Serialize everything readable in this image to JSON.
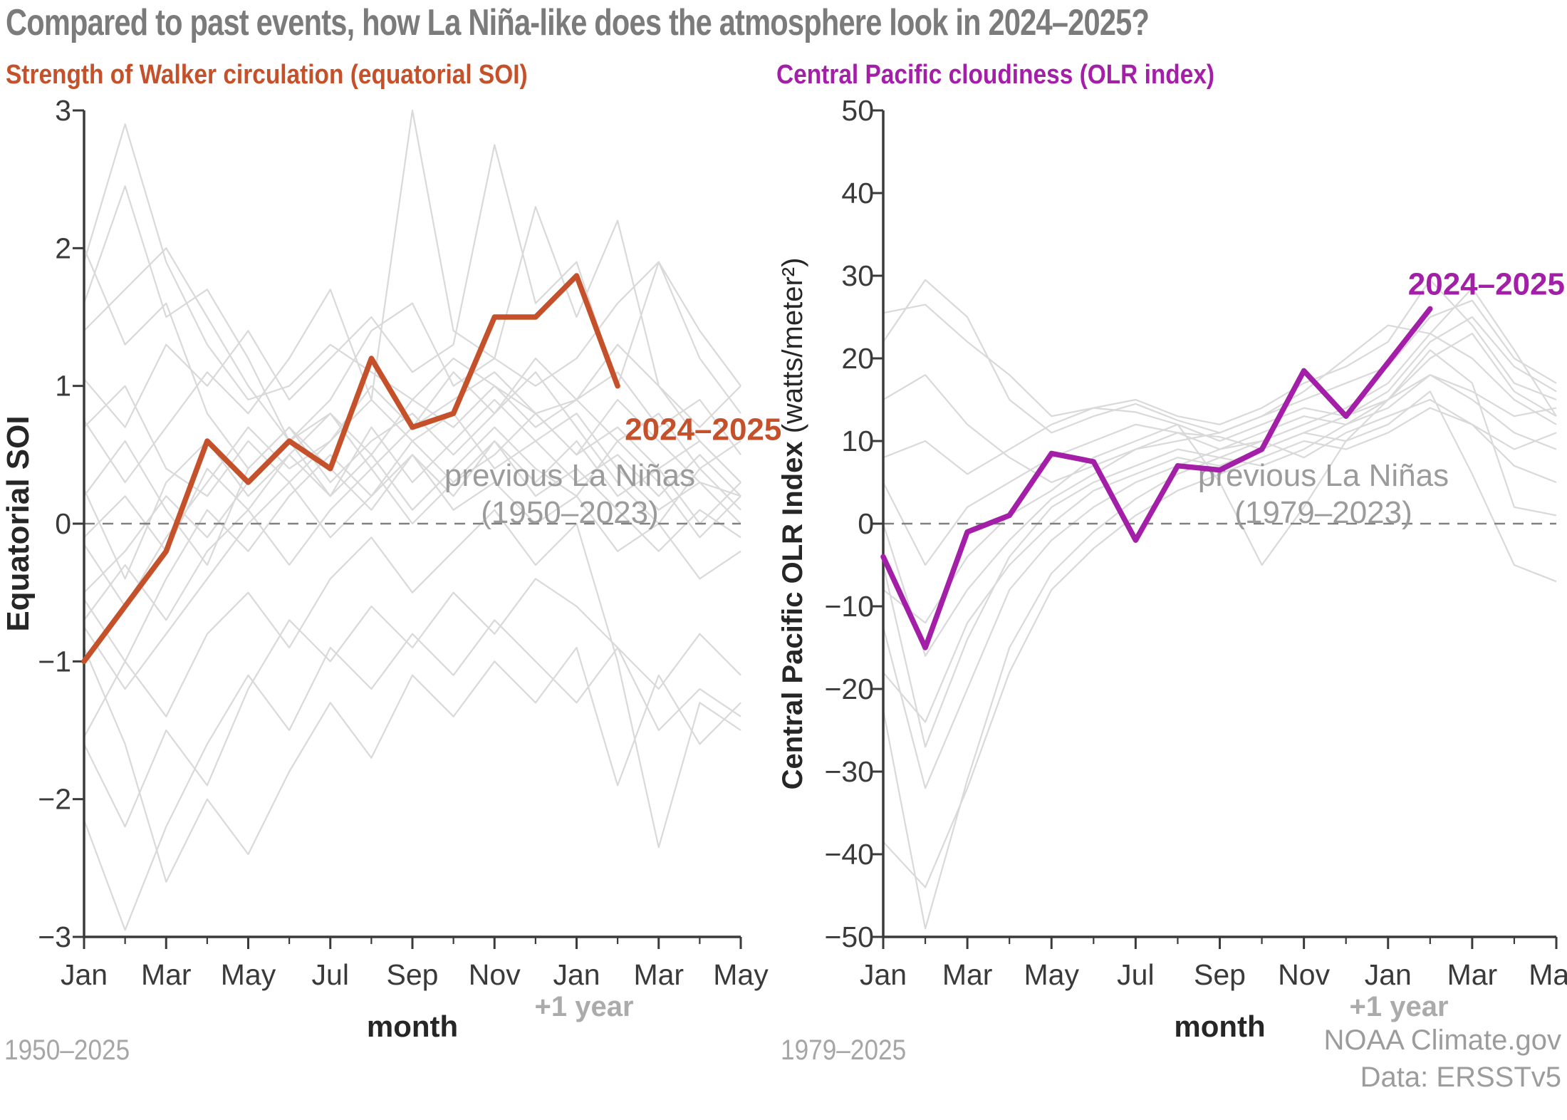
{
  "title": {
    "text": "Compared to past events, how La Niña-like does the atmosphere look in 2024–2025?",
    "color": "#7b7b7b"
  },
  "footer": {
    "left_range": "1950–2025",
    "right_range": "1979–2025",
    "credit_line1": "NOAA Climate.gov",
    "credit_line2": "Data: ERSSTv5"
  },
  "colors": {
    "axis": "#3a3a3a",
    "tick_text": "#3a3a3a",
    "axis_title_text": "#262626",
    "gray_lines": "#d9d9d9",
    "zero_dash": "#808080",
    "ensemble_label": "#9b9b9b",
    "plus_one_year": "#ababab",
    "soi_orange": "#c5512b",
    "olr_purple": "#a31fa8"
  },
  "chart_data": [
    {
      "type": "line",
      "title": "Strength of Walker circulation (equatorial SOI)",
      "title_color": "#c5512b",
      "xlabel": "month",
      "x_annotation": "+1 year",
      "ylabel": "Equatorial SOI",
      "ylabel_unit": "",
      "ylim": [
        -3,
        3
      ],
      "ytick_values": [
        3,
        2,
        1,
        0,
        -1,
        -2,
        -3
      ],
      "ytick_labels": [
        "3",
        "2",
        "1",
        "0",
        "−1",
        "−2",
        "−3"
      ],
      "x": [
        "Jan",
        "Feb",
        "Mar",
        "Apr",
        "May",
        "Jun",
        "Jul",
        "Aug",
        "Sep",
        "Oct",
        "Nov",
        "Dec",
        "Jan",
        "Feb",
        "Mar",
        "Apr",
        "May"
      ],
      "x_tick_labels": [
        "Jan",
        "Mar",
        "May",
        "Jul",
        "Sep",
        "Nov",
        "Jan",
        "Mar",
        "May"
      ],
      "zero_line": true,
      "grid": false,
      "legend_position": "in-plot annotations",
      "current_event": {
        "name": "2024–2025",
        "color": "#c5512b",
        "values": [
          -1.0,
          -0.6,
          -0.2,
          0.6,
          0.3,
          0.6,
          0.4,
          1.2,
          0.7,
          0.8,
          1.5,
          1.5,
          1.8,
          1.0
        ]
      },
      "ensemble": {
        "name": "previous La Niñas (1950–2023)",
        "label_line1": "previous La Niñas",
        "label_line2": "(1950–2023)",
        "color": "#d9d9d9",
        "series": [
          [
            1.9,
            2.9,
            1.9,
            1.3,
            0.9,
            1.0,
            1.3,
            1.1,
            0.9,
            1.2,
            1.0,
            0.8,
            0.5,
            0.9,
            0.6,
            0.3,
            0.2
          ],
          [
            1.6,
            2.45,
            1.5,
            1.7,
            1.2,
            0.6,
            0.9,
            1.4,
            1.6,
            1.0,
            1.2,
            2.3,
            1.5,
            2.2,
            1.0,
            0.7,
            1.0
          ],
          [
            2.0,
            1.3,
            1.6,
            0.8,
            0.4,
            0.7,
            0.3,
            0.6,
            0.8,
            0.5,
            0.8,
            1.1,
            0.7,
            0.3,
            0.0,
            0.4,
            0.1
          ],
          [
            1.4,
            1.7,
            2.0,
            1.5,
            1.0,
            0.6,
            0.8,
            0.4,
            0.7,
            0.9,
            1.1,
            0.8,
            0.9,
            1.3,
            1.0,
            0.6,
            0.3
          ],
          [
            1.05,
            0.7,
            1.3,
            1.0,
            1.4,
            0.9,
            1.2,
            1.5,
            1.1,
            1.3,
            2.75,
            1.6,
            1.9,
            1.0,
            1.9,
            1.2,
            0.8
          ],
          [
            0.75,
            0.3,
            0.7,
            1.1,
            0.8,
            1.2,
            1.7,
            0.9,
            3.0,
            1.4,
            1.2,
            1.0,
            1.2,
            1.6,
            1.9,
            1.4,
            1.0
          ],
          [
            0.7,
            1.0,
            0.4,
            0.2,
            0.6,
            0.3,
            0.6,
            0.9,
            0.6,
            0.8,
            0.4,
            0.6,
            0.3,
            0.5,
            0.2,
            0.5,
            0.2
          ],
          [
            0.25,
            -0.4,
            0.3,
            0.6,
            0.2,
            0.5,
            0.8,
            0.5,
            0.9,
            0.7,
            1.0,
            0.7,
            0.9,
            0.6,
            0.8,
            0.4,
            0.6
          ],
          [
            0.2,
            0.6,
            0.1,
            -0.3,
            0.4,
            0.7,
            0.4,
            0.1,
            0.5,
            0.2,
            0.6,
            0.3,
            0.6,
            0.2,
            0.4,
            0.0,
            0.3
          ],
          [
            -0.1,
            0.2,
            -0.2,
            0.4,
            0.1,
            0.5,
            0.2,
            0.7,
            0.3,
            0.6,
            0.9,
            0.6,
            0.8,
            0.4,
            0.1,
            0.3,
            0.0
          ],
          [
            -0.15,
            -0.6,
            -0.1,
            0.3,
            0.7,
            0.4,
            0.6,
            1.0,
            0.7,
            1.1,
            0.8,
            1.2,
            0.9,
            1.1,
            0.7,
            0.9,
            0.5
          ],
          [
            -0.5,
            -0.2,
            0.2,
            -0.1,
            0.3,
            0.6,
            0.2,
            0.5,
            0.1,
            0.4,
            0.7,
            0.4,
            0.2,
            0.6,
            0.3,
            -0.1,
            0.2
          ],
          [
            -0.55,
            -1.0,
            -0.4,
            0.1,
            -0.2,
            0.2,
            0.5,
            0.2,
            0.6,
            0.3,
            0.5,
            0.8,
            0.5,
            0.7,
            0.4,
            0.6,
            0.3
          ],
          [
            -0.7,
            -0.3,
            -0.7,
            -0.2,
            0.1,
            -0.3,
            0.1,
            0.4,
            0.0,
            0.3,
            0.6,
            0.2,
            0.4,
            0.1,
            -0.2,
            0.1,
            -0.1
          ],
          [
            -0.75,
            -1.2,
            -0.8,
            -0.4,
            0.0,
            0.3,
            -0.1,
            0.2,
            0.5,
            0.1,
            0.3,
            0.0,
            0.2,
            -0.2,
            0.0,
            -0.4,
            -0.2
          ],
          [
            -1.55,
            -1.0,
            -1.4,
            -0.8,
            -0.5,
            -0.9,
            -0.4,
            -0.1,
            -0.5,
            -0.2,
            0.1,
            -0.3,
            0.0,
            -1.0,
            -2.35,
            -1.3,
            -1.5
          ],
          [
            -1.6,
            -2.2,
            -1.5,
            -1.9,
            -1.2,
            -0.7,
            -1.0,
            -0.6,
            -0.9,
            -0.5,
            -0.8,
            -0.4,
            -0.6,
            -0.9,
            -1.2,
            -0.8,
            -1.1
          ],
          [
            -2.15,
            -2.95,
            -2.2,
            -1.6,
            -1.1,
            -1.5,
            -0.9,
            -1.2,
            -0.8,
            -1.1,
            -0.7,
            -1.0,
            -1.3,
            -0.9,
            -1.5,
            -1.2,
            -1.4
          ],
          [
            -0.9,
            -1.6,
            -2.6,
            -2.0,
            -2.4,
            -1.8,
            -1.3,
            -1.7,
            -1.1,
            -1.4,
            -1.0,
            -1.3,
            -0.9,
            -1.9,
            -1.1,
            -1.6,
            -1.3
          ]
        ]
      }
    },
    {
      "type": "line",
      "title": "Central Pacific cloudiness (OLR index)",
      "title_color": "#a31fa8",
      "xlabel": "month",
      "x_annotation": "+1 year",
      "ylabel": "Central Pacific OLR Index",
      "ylabel_unit": " (watts/meter²)",
      "ylim": [
        -50,
        50
      ],
      "ytick_values": [
        50,
        40,
        30,
        20,
        10,
        0,
        -10,
        -20,
        -30,
        -40,
        -50
      ],
      "ytick_labels": [
        "50",
        "40",
        "30",
        "20",
        "10",
        "0",
        "−10",
        "−20",
        "−30",
        "−40",
        "−50"
      ],
      "x": [
        "Jan",
        "Feb",
        "Mar",
        "Apr",
        "May",
        "Jun",
        "Jul",
        "Aug",
        "Sep",
        "Oct",
        "Nov",
        "Dec",
        "Jan",
        "Feb",
        "Mar",
        "Apr",
        "May"
      ],
      "x_tick_labels": [
        "Jan",
        "Mar",
        "May",
        "Jul",
        "Sep",
        "Nov",
        "Jan",
        "Mar",
        "May"
      ],
      "zero_line": true,
      "grid": false,
      "legend_position": "in-plot annotations",
      "current_event": {
        "name": "2024–2025",
        "color": "#a31fa8",
        "values": [
          -4,
          -15,
          -1,
          1,
          8.5,
          7.5,
          -2,
          7,
          6.5,
          9,
          18.5,
          13,
          19.5,
          26
        ]
      },
      "ensemble": {
        "name": "previous La Niñas (1979–2023)",
        "label_line1": "previous La Niñas",
        "label_line2": "(1979–2023)",
        "color": "#d9d9d9",
        "series": [
          [
            25.5,
            26.5,
            22,
            18,
            13,
            14,
            15,
            13,
            12,
            14,
            17,
            19,
            22,
            29.5,
            24,
            17,
            15
          ],
          [
            22,
            29.5,
            25,
            15,
            11,
            13,
            14.5,
            12.5,
            11,
            13,
            16,
            20,
            24,
            23,
            28.5,
            21,
            13
          ],
          [
            8,
            10,
            6,
            9,
            12,
            14,
            13.5,
            12,
            10,
            12,
            14,
            13,
            15,
            18,
            16,
            13,
            14
          ],
          [
            5,
            -5,
            2,
            5,
            8,
            10,
            12,
            11,
            9,
            10,
            8,
            11,
            13,
            15,
            12,
            9,
            11
          ],
          [
            0,
            -16,
            -8,
            -2,
            3,
            6,
            9,
            11,
            10.5,
            9,
            11,
            13,
            16,
            22,
            25,
            19,
            16
          ],
          [
            -5,
            -27,
            -14,
            -4,
            2,
            5,
            7,
            9,
            8,
            10,
            12,
            14,
            17,
            23,
            20,
            15,
            12
          ],
          [
            -12.5,
            -32,
            -20,
            -8,
            -2,
            2,
            5,
            7,
            9,
            11,
            13,
            12,
            15,
            20,
            23,
            16,
            13
          ],
          [
            -18,
            -24,
            -12,
            -5,
            0,
            4,
            6,
            8,
            7,
            9,
            11,
            10,
            12,
            16,
            6,
            -5,
            -7
          ],
          [
            -22.5,
            -49,
            -31,
            -15,
            -6,
            -1,
            3,
            6,
            8,
            7,
            9,
            12,
            14,
            18,
            15,
            11,
            9
          ],
          [
            -38.5,
            -44,
            -32,
            -18,
            -8,
            -3,
            1,
            4,
            6,
            8,
            10,
            9,
            11,
            14,
            12,
            7,
            5
          ],
          [
            15,
            18,
            12,
            8,
            5,
            7,
            9,
            10,
            11,
            13,
            15,
            17,
            19,
            25,
            27,
            20,
            17
          ],
          [
            -8,
            -12,
            -4,
            1,
            4,
            8,
            10,
            12,
            5,
            -5,
            2,
            10,
            15,
            21,
            17,
            2,
            1
          ]
        ]
      }
    }
  ]
}
